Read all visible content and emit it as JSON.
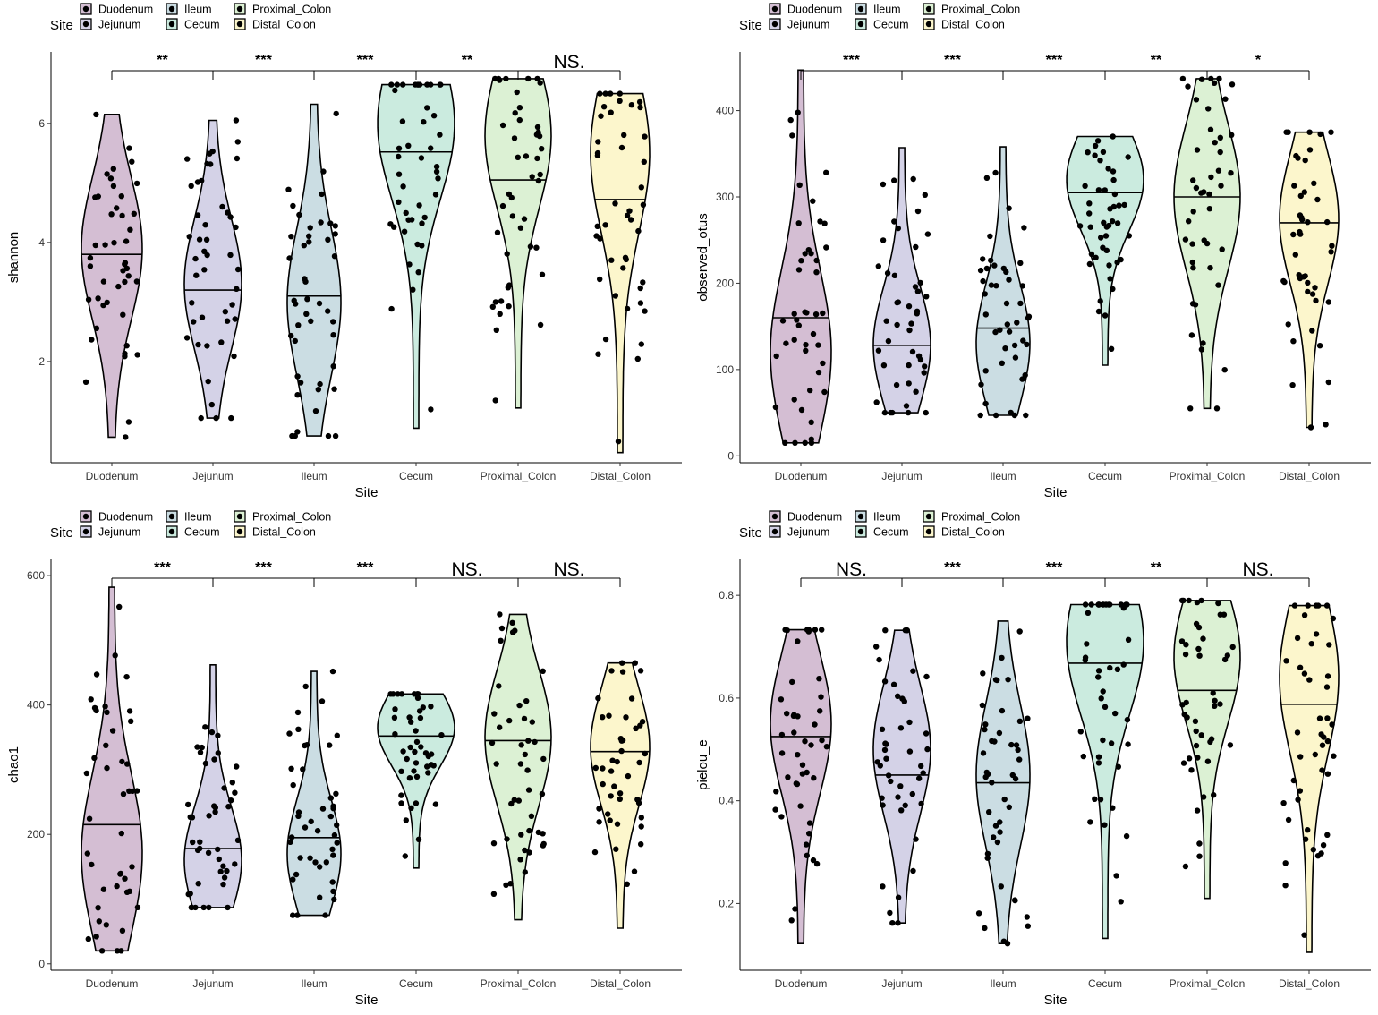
{
  "legend": {
    "title": "Site",
    "entries": [
      "Duodenum",
      "Jejunum",
      "Ileum",
      "Cecum",
      "Proximal_Colon",
      "Distal_Colon"
    ]
  },
  "colors": {
    "Duodenum": "#d4bed3",
    "Jejunum": "#d4d2e7",
    "Ileum": "#cbdde3",
    "Cecum": "#cbebdf",
    "Proximal_Colon": "#dcf1d4",
    "Distal_Colon": "#fcf6cc",
    "outline": "#000000",
    "points": "#000000"
  },
  "chart_data": [
    {
      "type": "violin",
      "xlabel": "Site",
      "ylabel": "shannon",
      "categories": [
        "Duodenum",
        "Jejunum",
        "Ileum",
        "Cecum",
        "Proximal_Colon",
        "Distal_Colon"
      ],
      "yticks": [
        2,
        4,
        6
      ],
      "ylim": [
        0.3,
        7.2
      ],
      "medians": [
        3.8,
        3.2,
        3.1,
        5.52,
        5.05,
        4.72
      ],
      "ranges": [
        [
          0.73,
          6.15
        ],
        [
          1.05,
          6.05
        ],
        [
          0.75,
          6.32
        ],
        [
          0.88,
          6.65
        ],
        [
          1.22,
          6.75
        ],
        [
          0.47,
          6.5
        ]
      ],
      "widest_at": [
        3.9,
        3.3,
        3.0,
        6.0,
        5.8,
        5.5
      ],
      "significance": [
        "**",
        "***",
        "***",
        "**",
        "NS."
      ]
    },
    {
      "type": "violin",
      "xlabel": "Site",
      "ylabel": "observed_otus",
      "categories": [
        "Duodenum",
        "Jejunum",
        "Ileum",
        "Cecum",
        "Proximal_Colon",
        "Distal_Colon"
      ],
      "yticks": [
        0,
        100,
        200,
        300,
        400
      ],
      "ylim": [
        -8,
        468
      ],
      "medians": [
        160,
        128,
        148,
        305,
        300,
        270
      ],
      "ranges": [
        [
          15,
          447
        ],
        [
          50,
          357
        ],
        [
          47,
          358
        ],
        [
          105,
          370
        ],
        [
          55,
          437
        ],
        [
          33,
          375
        ]
      ],
      "widest_at": [
        120,
        128,
        130,
        320,
        300,
        275
      ],
      "significance": [
        "***",
        "***",
        "***",
        "**",
        "*"
      ]
    },
    {
      "type": "violin",
      "xlabel": "Site",
      "ylabel": "chao1",
      "categories": [
        "Duodenum",
        "Jejunum",
        "Ileum",
        "Cecum",
        "Proximal_Colon",
        "Distal_Colon"
      ],
      "yticks": [
        0,
        200,
        400,
        600
      ],
      "ylim": [
        -10,
        625
      ],
      "medians": [
        215,
        178,
        195,
        352,
        345,
        328
      ],
      "ranges": [
        [
          20,
          582
        ],
        [
          87,
          462
        ],
        [
          75,
          452
        ],
        [
          148,
          417
        ],
        [
          68,
          540
        ],
        [
          55,
          465
        ]
      ],
      "widest_at": [
        170,
        160,
        170,
        365,
        350,
        335
      ],
      "significance": [
        "***",
        "***",
        "***",
        "NS.",
        "NS."
      ]
    },
    {
      "type": "violin",
      "xlabel": "Site",
      "ylabel": "pielou_e",
      "categories": [
        "Duodenum",
        "Jejunum",
        "Ileum",
        "Cecum",
        "Proximal_Colon",
        "Distal_Colon"
      ],
      "yticks": [
        0.2,
        0.4,
        0.6,
        0.8
      ],
      "ylim": [
        0.07,
        0.87
      ],
      "medians": [
        0.525,
        0.45,
        0.435,
        0.668,
        0.615,
        0.588
      ],
      "ranges": [
        [
          0.122,
          0.733
        ],
        [
          0.162,
          0.732
        ],
        [
          0.122,
          0.75
        ],
        [
          0.132,
          0.782
        ],
        [
          0.21,
          0.79
        ],
        [
          0.105,
          0.78
        ]
      ],
      "widest_at": [
        0.55,
        0.5,
        0.45,
        0.71,
        0.68,
        0.64
      ],
      "significance": [
        "NS.",
        "***",
        "***",
        "**",
        "NS."
      ]
    }
  ]
}
